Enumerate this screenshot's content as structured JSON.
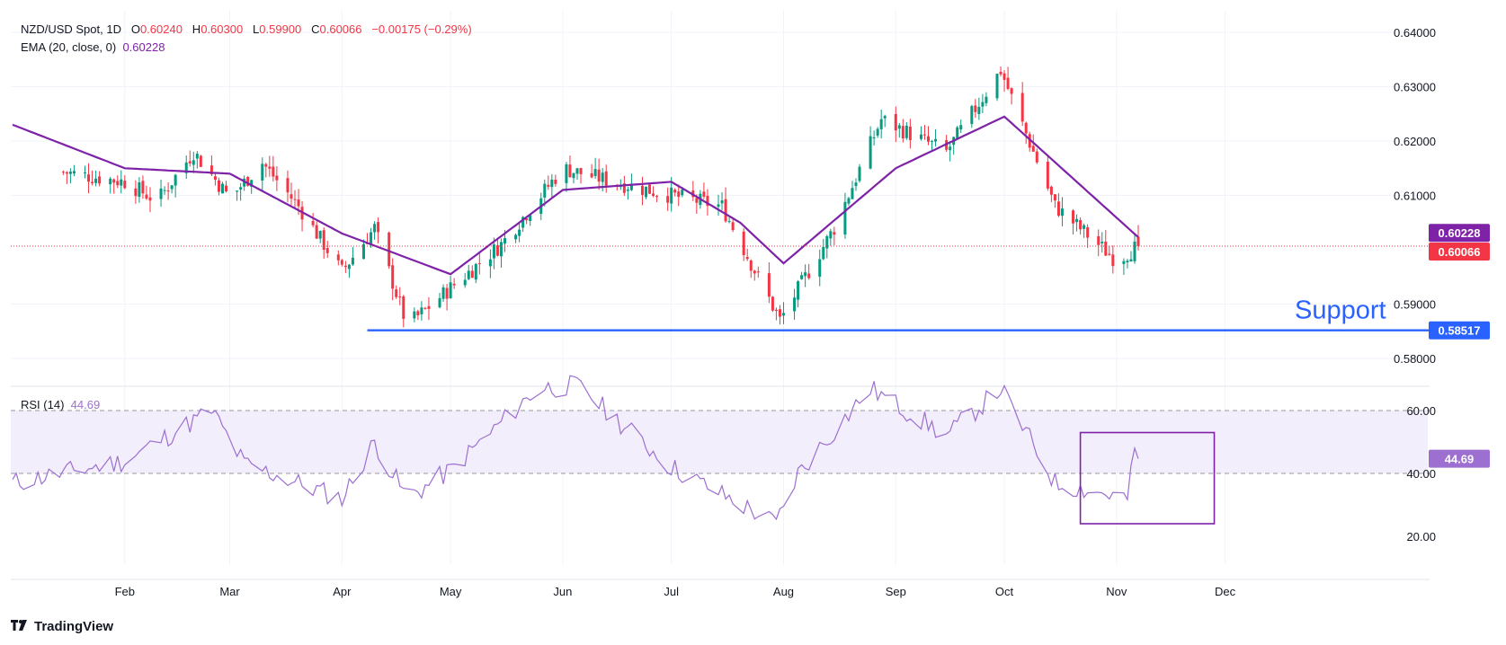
{
  "legend": {
    "symbol": "NZD/USD Spot, 1D",
    "o_label": "O",
    "o_val": "0.60240",
    "h_label": "H",
    "h_val": "0.60300",
    "l_label": "L",
    "l_val": "0.59900",
    "c_label": "C",
    "c_val": "0.60066",
    "change": "−0.00175 (−0.29%)",
    "ema_label": "EMA (20, close, 0)",
    "ema_val": "0.60228",
    "rsi_label": "RSI (14)",
    "rsi_val": "44.69"
  },
  "branding": {
    "logo_icon": "tradingview-logo-icon",
    "name": "TradingView"
  },
  "colors": {
    "up": "#089981",
    "down": "#f23645",
    "ema": "#7e22a8",
    "rsi": "#9c6fd0",
    "support": "#2962ff",
    "rsi_band": "#f3eefb",
    "grid": "#f0f3fa",
    "axis_text": "#131722"
  },
  "chart_data": [
    {
      "type": "candlestick",
      "title": "NZD/USD Spot, 1D",
      "ylim": [
        0.578,
        0.6415
      ],
      "y_ticks": [
        "0.64000",
        "0.63000",
        "0.62000",
        "0.61000",
        "0.59000",
        "0.58000"
      ],
      "x_tick_labels": [
        "Feb",
        "Mar",
        "Apr",
        "May",
        "Jun",
        "Jul",
        "Aug",
        "Sep",
        "Oct",
        "Nov",
        "Dec"
      ],
      "series_close": [
        {
          "date": "Jan-15",
          "close": 0.6143
        },
        {
          "date": "Feb-01",
          "close": 0.6125
        },
        {
          "date": "Feb-10",
          "close": 0.609
        },
        {
          "date": "Feb-20",
          "close": 0.618
        },
        {
          "date": "Mar-01",
          "close": 0.6095
        },
        {
          "date": "Mar-10",
          "close": 0.616
        },
        {
          "date": "Mar-20",
          "close": 0.608
        },
        {
          "date": "Apr-01",
          "close": 0.596
        },
        {
          "date": "Apr-10",
          "close": 0.604
        },
        {
          "date": "Apr-19",
          "close": 0.586
        },
        {
          "date": "May-01",
          "close": 0.593
        },
        {
          "date": "May-15",
          "close": 0.601
        },
        {
          "date": "Jun-01",
          "close": 0.615
        },
        {
          "date": "Jun-12",
          "close": 0.613
        },
        {
          "date": "Jul-01",
          "close": 0.61
        },
        {
          "date": "Jul-15",
          "close": 0.608
        },
        {
          "date": "Jul-31",
          "close": 0.587
        },
        {
          "date": "Aug-15",
          "close": 0.604
        },
        {
          "date": "Aug-28",
          "close": 0.624
        },
        {
          "date": "Sep-15",
          "close": 0.618
        },
        {
          "date": "Sep-30",
          "close": 0.633
        },
        {
          "date": "Oct-15",
          "close": 0.608
        },
        {
          "date": "Nov-01",
          "close": 0.598
        },
        {
          "date": "Nov-07",
          "close": 0.6007
        }
      ],
      "ema": {
        "name": "EMA (20, close, 0)",
        "points": [
          {
            "date": "Jan-01",
            "value": 0.623
          },
          {
            "date": "Feb-01",
            "value": 0.615
          },
          {
            "date": "Mar-01",
            "value": 0.614
          },
          {
            "date": "Apr-01",
            "value": 0.603
          },
          {
            "date": "May-01",
            "value": 0.5955
          },
          {
            "date": "Jun-01",
            "value": 0.611
          },
          {
            "date": "Jul-01",
            "value": 0.6125
          },
          {
            "date": "Jul-20",
            "value": 0.605
          },
          {
            "date": "Aug-01",
            "value": 0.5975
          },
          {
            "date": "Sep-01",
            "value": 0.615
          },
          {
            "date": "Oct-01",
            "value": 0.6245
          },
          {
            "date": "Nov-07",
            "value": 0.6023
          }
        ]
      },
      "support": {
        "label": "Support",
        "value": 0.58517,
        "value_label": "0.58517",
        "from_date": "Apr-08"
      },
      "price_badges": [
        {
          "label": "0.60228",
          "value": 0.60228,
          "color": "#7e22a8"
        },
        {
          "label": "0.60066",
          "value": 0.60066,
          "color": "#f23645"
        }
      ],
      "current_price_line": 0.60066
    },
    {
      "type": "line",
      "title": "RSI (14)",
      "ylim": [
        20,
        70
      ],
      "y_ticks": [
        "60.00",
        "40.00",
        "20.00"
      ],
      "band": [
        40,
        60
      ],
      "last_value": 44.69,
      "last_label": "44.69",
      "points": [
        {
          "date": "Jan-01",
          "value": 37
        },
        {
          "date": "Feb-01",
          "value": 44
        },
        {
          "date": "Feb-25",
          "value": 60
        },
        {
          "date": "Mar-05",
          "value": 43
        },
        {
          "date": "Apr-01",
          "value": 32
        },
        {
          "date": "Apr-10",
          "value": 50
        },
        {
          "date": "Apr-19",
          "value": 32
        },
        {
          "date": "May-01",
          "value": 41
        },
        {
          "date": "May-25",
          "value": 67
        },
        {
          "date": "Jun-05",
          "value": 68
        },
        {
          "date": "Jul-01",
          "value": 42
        },
        {
          "date": "Jul-30",
          "value": 24
        },
        {
          "date": "Aug-05",
          "value": 40
        },
        {
          "date": "Aug-25",
          "value": 67
        },
        {
          "date": "Sep-15",
          "value": 52
        },
        {
          "date": "Sep-30",
          "value": 67
        },
        {
          "date": "Oct-15",
          "value": 37
        },
        {
          "date": "Nov-04",
          "value": 32
        },
        {
          "date": "Nov-06",
          "value": 47
        },
        {
          "date": "Nov-07",
          "value": 44.69
        }
      ],
      "highlight_box": {
        "from_date": "Oct-22",
        "to_date": "Nov-28",
        "from_value": 24,
        "to_value": 53
      }
    }
  ]
}
